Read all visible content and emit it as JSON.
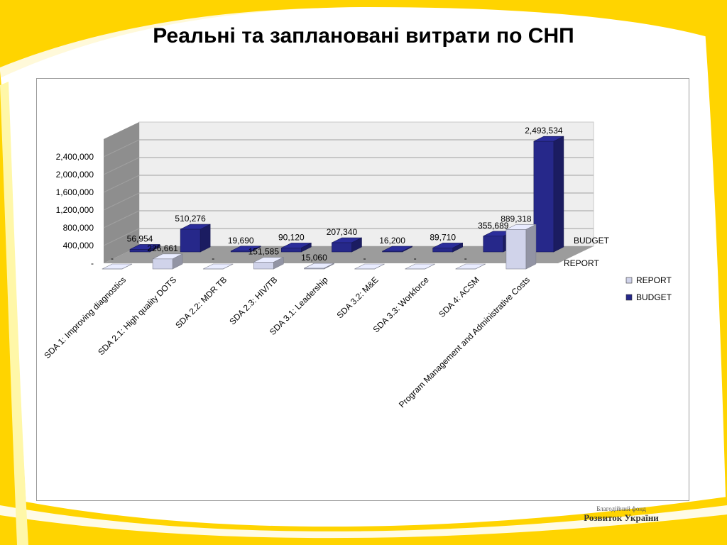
{
  "slide": {
    "title": "Реальні та заплановані витрати по СНП",
    "logo": {
      "line1": "Благодійний фонд",
      "line2": "Розвиток України"
    },
    "colors": {
      "yellow": "#ffd400",
      "yellow_light": "#fff7a8",
      "white_swoosh": "#ffffff"
    }
  },
  "chart_data": {
    "type": "bar",
    "style": "3d-clustered-column",
    "title": "",
    "categories": [
      "SDA 1: Improving diagnostics",
      "SDA 2.1: High quality DOTS",
      "SDA 2.2: MDR TB",
      "SDA 2.3: HIV/TB",
      "SDA 3.1: Leadership",
      "SDA 3.2: M&E",
      "SDA 3.3: Workforce",
      "SDA 4: ACSM",
      "Program Management and Administrative Costs"
    ],
    "series": [
      {
        "name": "REPORT",
        "values": [
          0,
          226661,
          0,
          151585,
          15060,
          0,
          0,
          0,
          889318
        ],
        "labels": [
          "-",
          "226,661",
          "-",
          "151,585",
          "15,060",
          "-",
          "-",
          "-",
          "889,318"
        ],
        "color": "#d0d3ea"
      },
      {
        "name": "BUDGET",
        "values": [
          56954,
          510276,
          19690,
          90120,
          207340,
          16200,
          89710,
          355689,
          2493534
        ],
        "labels": [
          "56,954",
          "510,276",
          "19,690",
          "90,120",
          "207,340",
          "16,200",
          "89,710",
          "355,689",
          "2,493,534"
        ],
        "color": "#26288a"
      }
    ],
    "yticks": [
      "-",
      "400,000",
      "800,000",
      "1,200,000",
      "1,600,000",
      "2,000,000",
      "2,400,000"
    ],
    "ylim": [
      0,
      2800000
    ],
    "ytick_step": 400000,
    "grid": true,
    "depth_labels": [
      "BUDGET",
      "REPORT"
    ],
    "legend": {
      "position": "right",
      "entries": [
        "REPORT",
        "BUDGET"
      ]
    }
  }
}
